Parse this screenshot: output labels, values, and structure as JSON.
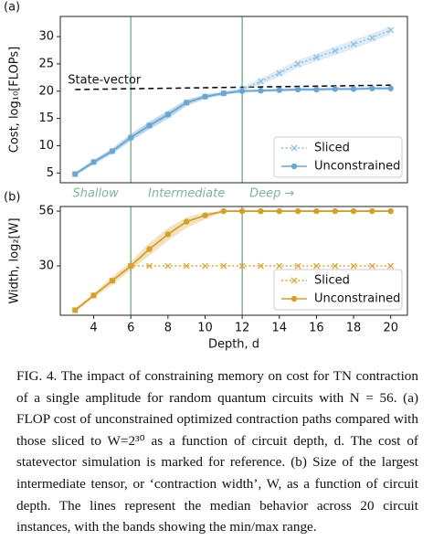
{
  "chart_data": [
    {
      "type": "line",
      "panel_label": "(a)",
      "ylabel": "Cost, log₁₀[FLOPs]",
      "x": [
        3,
        4,
        5,
        6,
        7,
        8,
        9,
        10,
        11,
        12,
        13,
        14,
        15,
        16,
        17,
        18,
        19,
        20
      ],
      "xlim": [
        2.2,
        20.9
      ],
      "ylim": [
        3.2,
        33.7
      ],
      "yticks": [
        5,
        10,
        15,
        20,
        25,
        30
      ],
      "vlines": [
        6,
        12
      ],
      "vline_color": "#7fb59a",
      "regions": [
        "Shallow",
        "Intermediate",
        "Deep →"
      ],
      "legend": "lower right",
      "reference": {
        "label": "State-vector",
        "x": [
          3,
          20
        ],
        "values": [
          20.3,
          21.1
        ],
        "color": "#000000"
      },
      "series": [
        {
          "name": "Sliced",
          "color": "#8dbfe3",
          "marker": "x",
          "dash": true,
          "values": [
            4.8,
            7,
            9,
            11.5,
            13.7,
            15.7,
            17.9,
            19,
            19.6,
            20.3,
            21.8,
            23.3,
            25,
            26.2,
            27.4,
            28.6,
            29.8,
            31.2
          ],
          "lower": [
            4.5,
            6.6,
            8.5,
            10.9,
            13,
            15,
            17.3,
            18.6,
            19.3,
            20,
            21.2,
            22.6,
            24.3,
            25.4,
            26.6,
            27.8,
            29,
            30.4
          ],
          "upper": [
            5.1,
            7.4,
            9.5,
            12.1,
            14.4,
            16.4,
            18.4,
            19.4,
            19.9,
            20.7,
            22.4,
            24,
            25.7,
            26.9,
            28.2,
            29.4,
            30.6,
            31.9
          ]
        },
        {
          "name": "Unconstrained",
          "color": "#6aa6d4",
          "marker": "o",
          "dash": false,
          "values": [
            4.8,
            7,
            9,
            11.5,
            13.7,
            15.7,
            17.9,
            19,
            19.6,
            20,
            20.1,
            20.2,
            20.3,
            20.3,
            20.4,
            20.4,
            20.5,
            20.5
          ],
          "lower": [
            4.5,
            6.6,
            8.5,
            10.9,
            13,
            15,
            17.3,
            18.6,
            19.3,
            19.7,
            19.8,
            19.9,
            20,
            20,
            20.1,
            20.1,
            20.2,
            20.2
          ],
          "upper": [
            5.1,
            7.4,
            9.5,
            12.1,
            14.4,
            16.4,
            18.4,
            19.4,
            19.9,
            20.3,
            20.4,
            20.5,
            20.6,
            20.6,
            20.7,
            20.7,
            20.8,
            20.8
          ]
        }
      ]
    },
    {
      "type": "line",
      "panel_label": "(b)",
      "ylabel": "Width, log₂[W]",
      "xlabel": "Depth, d",
      "x": [
        3,
        4,
        5,
        6,
        7,
        8,
        9,
        10,
        11,
        12,
        13,
        14,
        15,
        16,
        17,
        18,
        19,
        20
      ],
      "xlim": [
        2.2,
        20.9
      ],
      "ylim": [
        6.6,
        58.2
      ],
      "yticks": [
        30,
        56
      ],
      "xticks": [
        4,
        6,
        8,
        10,
        12,
        14,
        16,
        18,
        20
      ],
      "vlines": [
        6,
        12
      ],
      "vline_color": "#7fb59a",
      "legend": "lower right",
      "series": [
        {
          "name": "Sliced",
          "color": "#d9a736",
          "marker": "x",
          "dash": true,
          "values": [
            9,
            16,
            23,
            30,
            30,
            30,
            30,
            30,
            30,
            30,
            30,
            30,
            30,
            30,
            30,
            30,
            30,
            30
          ]
        },
        {
          "name": "Unconstrained",
          "color": "#d4a02a",
          "marker": "o",
          "dash": false,
          "values": [
            9,
            16,
            23,
            30,
            38,
            45,
            51,
            54,
            56,
            56,
            56,
            56,
            56,
            56,
            56,
            56,
            56,
            56
          ],
          "lower": [
            8,
            15,
            21,
            28,
            35,
            42,
            48,
            52,
            55.5,
            56,
            56,
            56,
            56,
            56,
            56,
            56,
            56,
            56
          ],
          "upper": [
            10,
            17,
            25,
            32,
            41,
            48,
            53,
            55.5,
            56,
            56,
            56,
            56,
            56,
            56,
            56,
            56,
            56,
            56
          ]
        }
      ]
    }
  ],
  "caption": "FIG. 4.  The impact of constraining memory on cost for TN contraction of a single amplitude for random quantum circuits with N = 56. (a) FLOP cost of unconstrained optimized contraction paths compared with those sliced to W=2³⁰ as a function of circuit depth, d. The cost of statevector simulation is marked for reference. (b) Size of the largest intermediate tensor, or ‘contraction width’, W, as a function of circuit depth. The lines represent the median behavior across 20 circuit instances, with the bands showing the min/max range."
}
